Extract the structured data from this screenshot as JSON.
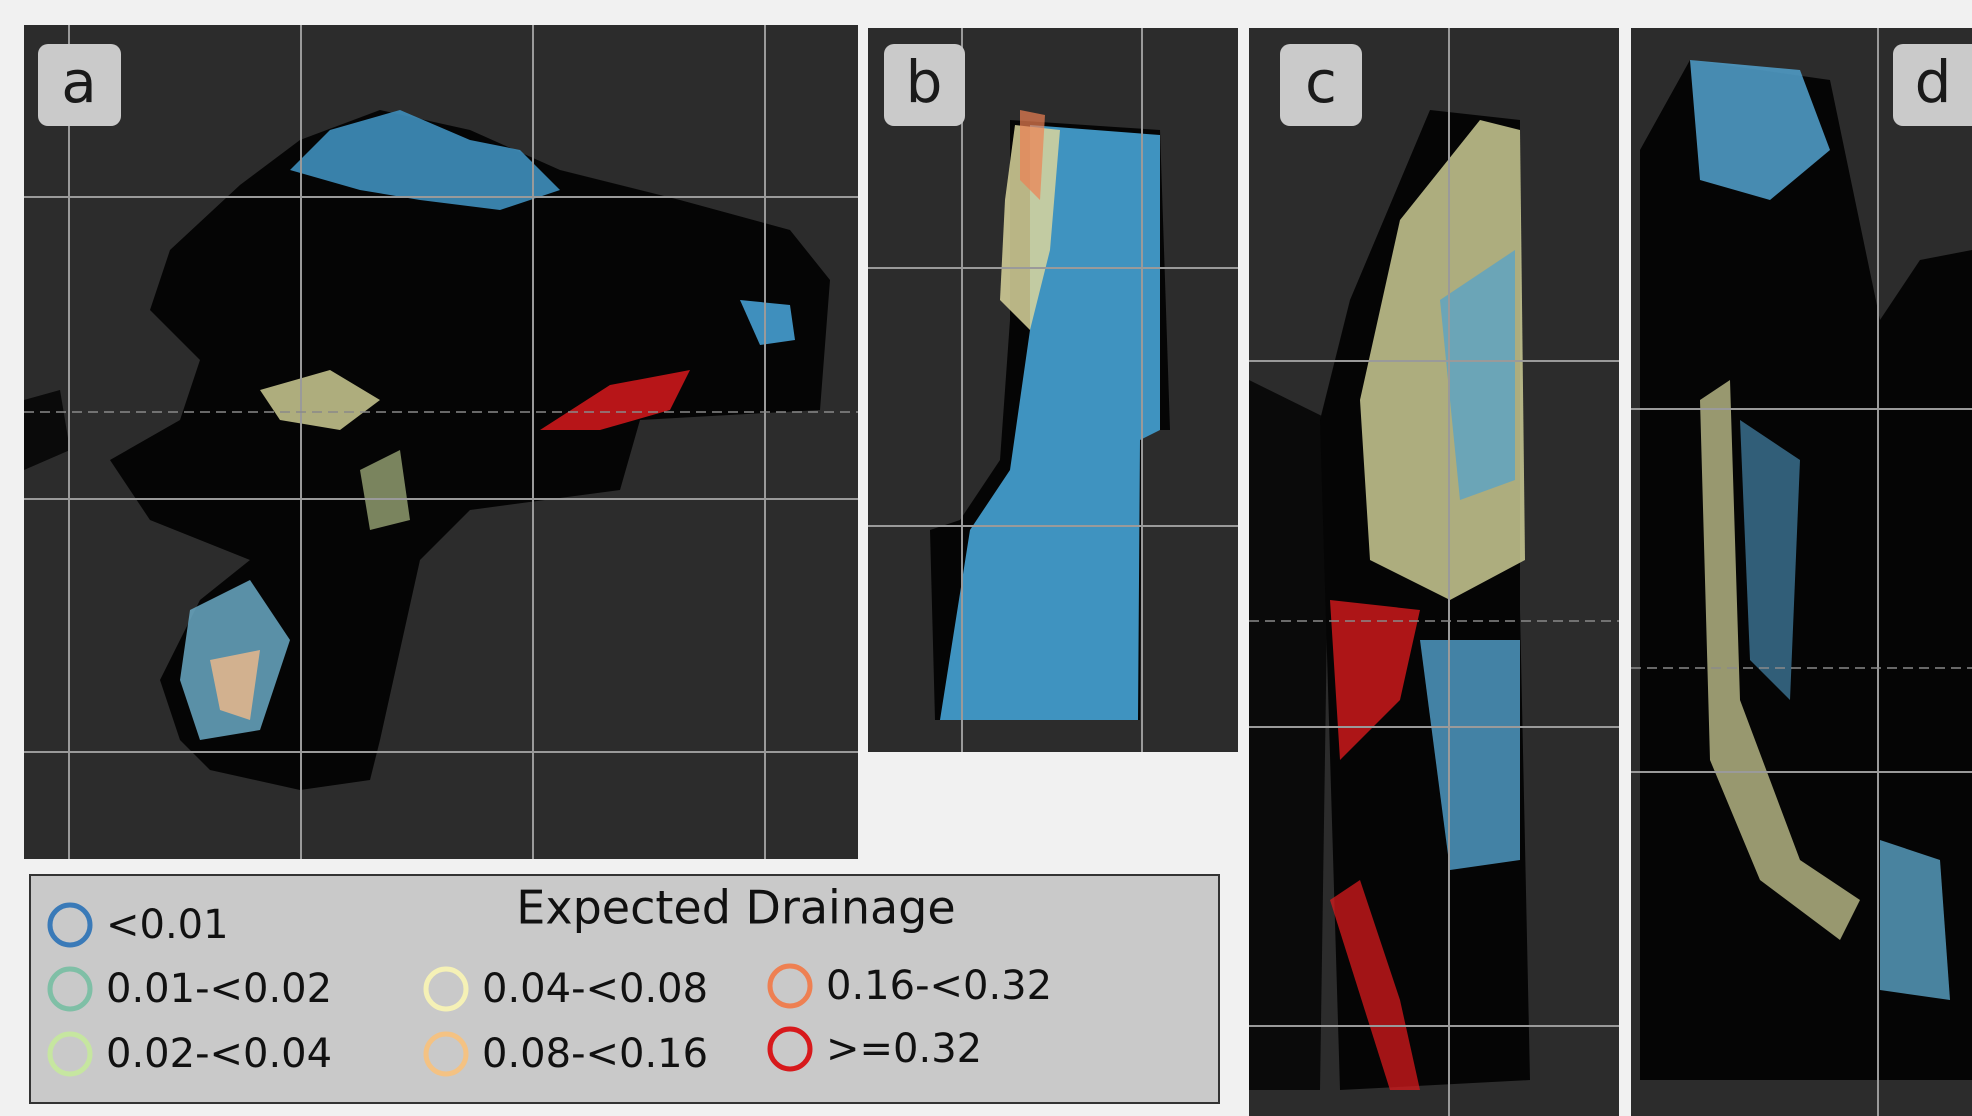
{
  "panels": [
    "a",
    "b",
    "c",
    "d"
  ],
  "legend": {
    "title": "Expected Drainage",
    "items": [
      {
        "label": "<0.01",
        "color": "#3a7ab8"
      },
      {
        "label": "0.01-<0.02",
        "color": "#7fbfa6"
      },
      {
        "label": "0.02-<0.04",
        "color": "#c6e6a0"
      },
      {
        "label": "0.04-<0.08",
        "color": "#f5f1b6"
      },
      {
        "label": "0.08-<0.16",
        "color": "#f4c283"
      },
      {
        "label": "0.16-<0.32",
        "color": "#ee8052"
      },
      {
        "label": ">=0.32",
        "color": "#d7191c"
      }
    ]
  }
}
